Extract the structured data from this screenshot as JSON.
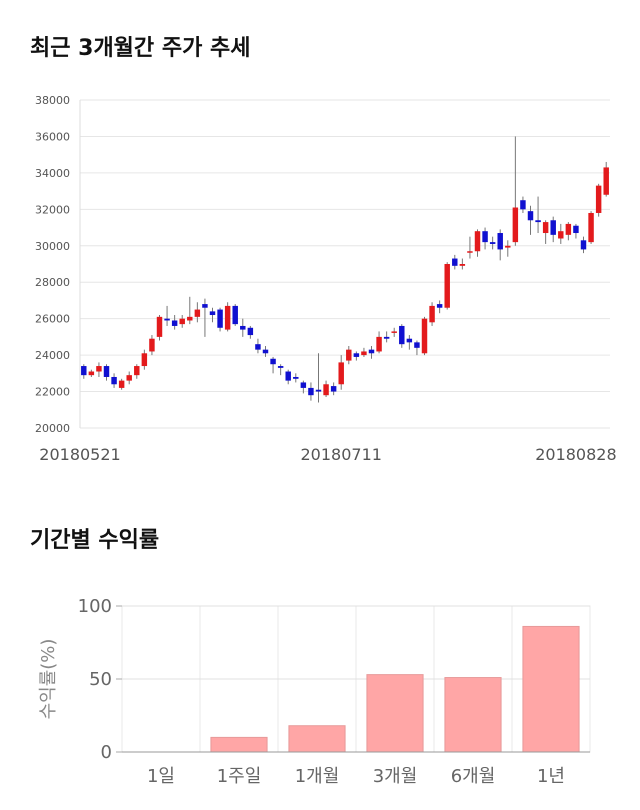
{
  "titles": {
    "price": "최근 3개월간 주가 추세",
    "returns": "기간별 수익률"
  },
  "chart_data": [
    {
      "type": "candlestick",
      "title": "최근 3개월간 주가 추세",
      "ylim": [
        20000,
        38000
      ],
      "yticks": [
        20000,
        22000,
        24000,
        26000,
        28000,
        30000,
        32000,
        34000,
        36000,
        38000
      ],
      "x_tick_labels": [
        "20180521",
        "20180711",
        "20180828"
      ],
      "x_tick_index": [
        0,
        34,
        65
      ],
      "up_color": "#e31a1c",
      "down_color": "#1010d0",
      "candles": [
        [
          23400,
          22900,
          23500,
          22700
        ],
        [
          22900,
          23100,
          23200,
          22800
        ],
        [
          23100,
          23400,
          23600,
          22800
        ],
        [
          23400,
          22800,
          23500,
          22600
        ],
        [
          22800,
          22400,
          23000,
          22200
        ],
        [
          22200,
          22600,
          22700,
          22100
        ],
        [
          22600,
          22900,
          23100,
          22400
        ],
        [
          22900,
          23400,
          23500,
          22700
        ],
        [
          23400,
          24100,
          24300,
          23200
        ],
        [
          24200,
          24900,
          25100,
          24000
        ],
        [
          25000,
          26100,
          26200,
          24800
        ],
        [
          26000,
          25900,
          26700,
          25600
        ],
        [
          25900,
          25600,
          26200,
          25400
        ],
        [
          25700,
          26000,
          26200,
          25500
        ],
        [
          25900,
          26100,
          27200,
          25700
        ],
        [
          26100,
          26500,
          26900,
          25800
        ],
        [
          26800,
          26600,
          27100,
          25000
        ],
        [
          26400,
          26200,
          26600,
          25800
        ],
        [
          26500,
          25500,
          26600,
          25300
        ],
        [
          25400,
          26700,
          26900,
          25300
        ],
        [
          26700,
          25700,
          26800,
          25600
        ],
        [
          25600,
          25400,
          26000,
          25000
        ],
        [
          25500,
          25100,
          25600,
          24900
        ],
        [
          24600,
          24300,
          24900,
          24100
        ],
        [
          24300,
          24100,
          24500,
          23900
        ],
        [
          23800,
          23500,
          23900,
          23000
        ],
        [
          23400,
          23300,
          23500,
          22900
        ],
        [
          23100,
          22600,
          23200,
          22400
        ],
        [
          22800,
          22700,
          23000,
          22500
        ],
        [
          22500,
          22200,
          22600,
          21900
        ],
        [
          22200,
          21800,
          22500,
          21500
        ],
        [
          22100,
          22000,
          24100,
          21400
        ],
        [
          21800,
          22400,
          22600,
          21700
        ],
        [
          22300,
          22000,
          22500,
          21800
        ],
        [
          22400,
          23600,
          24000,
          22100
        ],
        [
          23700,
          24300,
          24500,
          23500
        ],
        [
          24100,
          23900,
          24200,
          23700
        ],
        [
          24000,
          24200,
          24400,
          23900
        ],
        [
          24300,
          24100,
          24500,
          23800
        ],
        [
          24200,
          25000,
          25300,
          24100
        ],
        [
          25000,
          24900,
          25300,
          24700
        ],
        [
          25300,
          25300,
          25500,
          25000
        ],
        [
          25600,
          24600,
          25700,
          24400
        ],
        [
          24900,
          24700,
          25100,
          24300
        ],
        [
          24700,
          24400,
          24800,
          24000
        ],
        [
          24100,
          26000,
          26100,
          24000
        ],
        [
          25800,
          26700,
          26900,
          25600
        ],
        [
          26800,
          26600,
          27000,
          26300
        ],
        [
          26600,
          29000,
          29100,
          26500
        ],
        [
          29300,
          28900,
          29500,
          28700
        ],
        [
          28900,
          29000,
          29300,
          28700
        ],
        [
          29700,
          29700,
          30500,
          29300
        ],
        [
          29700,
          30800,
          30900,
          29400
        ],
        [
          30800,
          30200,
          31000,
          29800
        ],
        [
          30200,
          30100,
          30500,
          29800
        ],
        [
          30700,
          29800,
          30900,
          29200
        ],
        [
          29900,
          30000,
          30300,
          29400
        ],
        [
          30200,
          32100,
          36000,
          30000
        ],
        [
          32500,
          32000,
          32700,
          31800
        ],
        [
          31900,
          31400,
          32200,
          30600
        ],
        [
          31400,
          31300,
          32700,
          30700
        ],
        [
          30700,
          31300,
          31400,
          30100
        ],
        [
          31400,
          30600,
          31600,
          30200
        ],
        [
          30400,
          30800,
          31200,
          30100
        ],
        [
          30600,
          31200,
          31300,
          30300
        ],
        [
          31100,
          30700,
          31200,
          30400
        ],
        [
          30300,
          29800,
          30500,
          29600
        ],
        [
          30200,
          31800,
          31900,
          30100
        ],
        [
          31800,
          33300,
          33400,
          31600
        ],
        [
          32800,
          34300,
          34600,
          32700
        ]
      ]
    },
    {
      "type": "bar",
      "title": "기간별 수익률",
      "ylabel": "수익률(%)",
      "ylim": [
        0,
        100
      ],
      "yticks": [
        0,
        50,
        100
      ],
      "categories": [
        "1일",
        "1주일",
        "1개월",
        "3개월",
        "6개월",
        "1년"
      ],
      "values": [
        0,
        10,
        18,
        53,
        51,
        86
      ],
      "bar_color": "#ffa6a6"
    }
  ]
}
